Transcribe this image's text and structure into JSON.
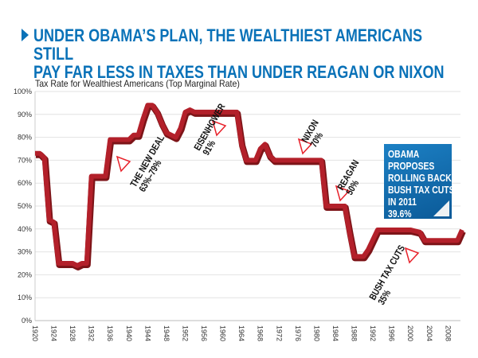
{
  "title_line1": "UNDER OBAMA’S PLAN, THE WEALTHIEST AMERICANS STILL",
  "title_line2": "PAY FAR LESS IN TAXES THAN UNDER REAGAN OR NIXON",
  "colors": {
    "title": "#0a72b8",
    "line": "#b3202a",
    "line_shadow": "#7d1418",
    "annotation_triangle": "#e8222b",
    "callout_box": "#0b6aae"
  },
  "chart_data": {
    "type": "line",
    "title": "Tax Rate for Wealthiest Americans (Top Marginal Rate)",
    "xlabel": "",
    "ylabel": "",
    "xlim": [
      1920,
      2011
    ],
    "ylim": [
      0,
      100
    ],
    "grid": true,
    "x_ticks": [
      "1920",
      "1924",
      "1928",
      "1932",
      "1936",
      "1940",
      "1944",
      "1948",
      "1952",
      "1956",
      "1960",
      "1964",
      "1968",
      "1972",
      "1976",
      "1980",
      "1984",
      "1988",
      "1992",
      "1996",
      "2000",
      "2004",
      "2008"
    ],
    "y_ticks": [
      "0%",
      "10%",
      "20%",
      "30%",
      "40%",
      "50%",
      "60%",
      "70%",
      "80%",
      "90%",
      "100%"
    ],
    "x": [
      1920,
      1921,
      1922,
      1923,
      1924,
      1925,
      1928,
      1929,
      1930,
      1931,
      1932,
      1935,
      1936,
      1940,
      1941,
      1942,
      1943,
      1944,
      1945,
      1946,
      1947,
      1948,
      1950,
      1951,
      1952,
      1953,
      1954,
      1963,
      1964,
      1965,
      1967,
      1968,
      1969,
      1970,
      1971,
      1981,
      1982,
      1986,
      1987,
      1988,
      1990,
      1991,
      1993,
      2000,
      2001,
      2002,
      2003,
      2010,
      2011
    ],
    "values": [
      73,
      73,
      71,
      44,
      43,
      25,
      25,
      24,
      25,
      25,
      63,
      63,
      79,
      79,
      81,
      81,
      88,
      94,
      94,
      91,
      86,
      82,
      80,
      84,
      91,
      92,
      91,
      91,
      77,
      70,
      70,
      75,
      77,
      72,
      70,
      70,
      50,
      50,
      38.5,
      28,
      28,
      31,
      39.6,
      39.6,
      39.1,
      38.6,
      35,
      35,
      39.6
    ],
    "annotations": [
      {
        "label": "THE NEW DEAL",
        "value": "63%–79%"
      },
      {
        "label": "EISENHOWER",
        "value": "91%"
      },
      {
        "label": "NIXON",
        "value": "70%"
      },
      {
        "label": "REAGAN",
        "value": "50%"
      },
      {
        "label": "BUSH TAX CUTS",
        "value": "35%"
      }
    ],
    "callout": [
      "OBAMA",
      "PROPOSES",
      "ROLLING BACK",
      "BUSH TAX CUTS",
      "IN 2011",
      "39.6%"
    ]
  }
}
